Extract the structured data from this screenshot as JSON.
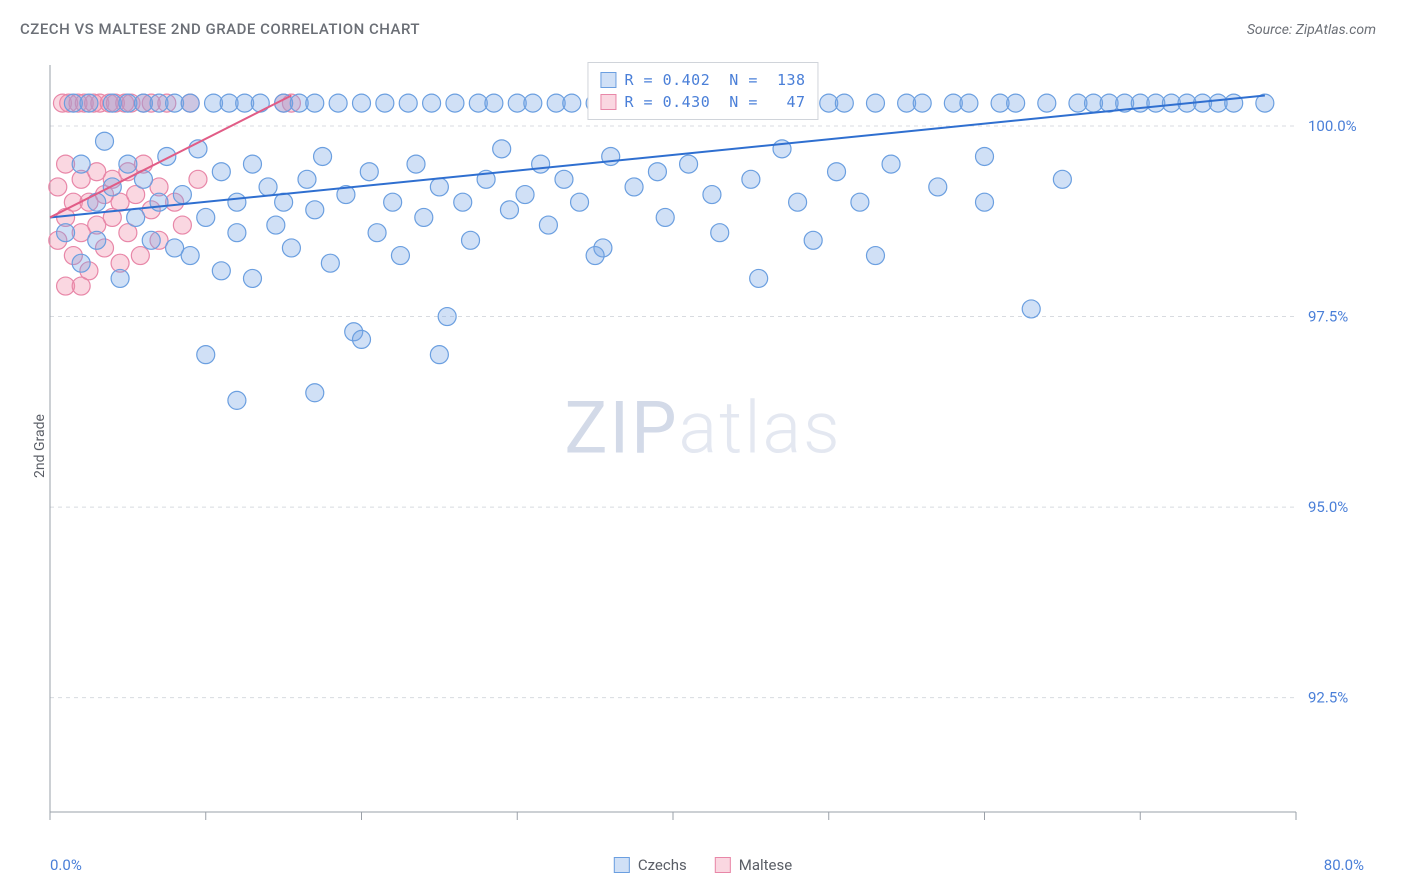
{
  "title": "CZECH VS MALTESE 2ND GRADE CORRELATION CHART",
  "source": "Source: ZipAtlas.com",
  "y_axis_label": "2nd Grade",
  "watermark_zip": "ZIP",
  "watermark_atlas": "atlas",
  "chart": {
    "type": "scatter",
    "xlim": [
      0,
      80
    ],
    "ylim": [
      91.0,
      100.8
    ],
    "x_ticks": [
      0,
      10,
      20,
      30,
      40,
      50,
      60,
      70,
      80
    ],
    "y_ticks": [
      92.5,
      95.0,
      97.5,
      100.0
    ],
    "y_tick_labels": [
      "92.5%",
      "95.0%",
      "97.5%",
      "100.0%"
    ],
    "x_min_label": "0.0%",
    "x_max_label": "80.0%",
    "grid_color": "#d8dbe0",
    "axis_color": "#9aa0a8",
    "tick_label_color": "#4a7fd8",
    "background_color": "#ffffff",
    "marker_radius": 9,
    "marker_stroke_width": 1.2,
    "line_width": 2,
    "series": [
      {
        "name": "Czechs",
        "fill": "rgba(120,165,230,0.35)",
        "stroke": "#6b9fe0",
        "regression": {
          "x1": 0,
          "y1": 98.8,
          "x2": 78,
          "y2": 100.4,
          "color": "#2f6fd0"
        },
        "points": [
          [
            1,
            98.6
          ],
          [
            1.5,
            100.3
          ],
          [
            2,
            99.5
          ],
          [
            2,
            98.2
          ],
          [
            2.5,
            100.3
          ],
          [
            3,
            99.0
          ],
          [
            3,
            98.5
          ],
          [
            3.5,
            99.8
          ],
          [
            4,
            100.3
          ],
          [
            4,
            99.2
          ],
          [
            4.5,
            98.0
          ],
          [
            5,
            99.5
          ],
          [
            5,
            100.3
          ],
          [
            5.5,
            98.8
          ],
          [
            6,
            99.3
          ],
          [
            6,
            100.3
          ],
          [
            6.5,
            98.5
          ],
          [
            7,
            99.0
          ],
          [
            7,
            100.3
          ],
          [
            7.5,
            99.6
          ],
          [
            8,
            98.4
          ],
          [
            8,
            100.3
          ],
          [
            8.5,
            99.1
          ],
          [
            9,
            98.3
          ],
          [
            9,
            100.3
          ],
          [
            9.5,
            99.7
          ],
          [
            10,
            98.8
          ],
          [
            10,
            97.0
          ],
          [
            10.5,
            100.3
          ],
          [
            11,
            99.4
          ],
          [
            11,
            98.1
          ],
          [
            11.5,
            100.3
          ],
          [
            12,
            99.0
          ],
          [
            12,
            98.6
          ],
          [
            12.5,
            100.3
          ],
          [
            13,
            99.5
          ],
          [
            13,
            98.0
          ],
          [
            13.5,
            100.3
          ],
          [
            14,
            99.2
          ],
          [
            14.5,
            98.7
          ],
          [
            15,
            100.3
          ],
          [
            15,
            99.0
          ],
          [
            15.5,
            98.4
          ],
          [
            16,
            100.3
          ],
          [
            16.5,
            99.3
          ],
          [
            17,
            98.9
          ],
          [
            17,
            100.3
          ],
          [
            17.5,
            99.6
          ],
          [
            18,
            98.2
          ],
          [
            18.5,
            100.3
          ],
          [
            19,
            99.1
          ],
          [
            19.5,
            97.3
          ],
          [
            20,
            100.3
          ],
          [
            20.5,
            99.4
          ],
          [
            21,
            98.6
          ],
          [
            21.5,
            100.3
          ],
          [
            22,
            99.0
          ],
          [
            22.5,
            98.3
          ],
          [
            23,
            100.3
          ],
          [
            23.5,
            99.5
          ],
          [
            24,
            98.8
          ],
          [
            24.5,
            100.3
          ],
          [
            25,
            99.2
          ],
          [
            25.5,
            97.5
          ],
          [
            26,
            100.3
          ],
          [
            26.5,
            99.0
          ],
          [
            27,
            98.5
          ],
          [
            27.5,
            100.3
          ],
          [
            28,
            99.3
          ],
          [
            28.5,
            100.3
          ],
          [
            29,
            99.7
          ],
          [
            29.5,
            98.9
          ],
          [
            30,
            100.3
          ],
          [
            30.5,
            99.1
          ],
          [
            31,
            100.3
          ],
          [
            31.5,
            99.5
          ],
          [
            32,
            98.7
          ],
          [
            32.5,
            100.3
          ],
          [
            33,
            99.3
          ],
          [
            33.5,
            100.3
          ],
          [
            34,
            99.0
          ],
          [
            35,
            100.3
          ],
          [
            35.5,
            98.4
          ],
          [
            36,
            99.6
          ],
          [
            37,
            100.3
          ],
          [
            37.5,
            99.2
          ],
          [
            38,
            100.3
          ],
          [
            39,
            99.4
          ],
          [
            39.5,
            98.8
          ],
          [
            40,
            100.3
          ],
          [
            41,
            99.5
          ],
          [
            42,
            100.3
          ],
          [
            42.5,
            99.1
          ],
          [
            43,
            98.6
          ],
          [
            44,
            100.3
          ],
          [
            45,
            99.3
          ],
          [
            45.5,
            98.0
          ],
          [
            46,
            100.3
          ],
          [
            47,
            99.7
          ],
          [
            48,
            100.3
          ],
          [
            49,
            98.5
          ],
          [
            50,
            100.3
          ],
          [
            50.5,
            99.4
          ],
          [
            51,
            100.3
          ],
          [
            52,
            99.0
          ],
          [
            53,
            100.3
          ],
          [
            54,
            99.5
          ],
          [
            55,
            100.3
          ],
          [
            56,
            100.3
          ],
          [
            57,
            99.2
          ],
          [
            58,
            100.3
          ],
          [
            59,
            100.3
          ],
          [
            60,
            99.6
          ],
          [
            61,
            100.3
          ],
          [
            62,
            100.3
          ],
          [
            63,
            97.6
          ],
          [
            64,
            100.3
          ],
          [
            65,
            99.3
          ],
          [
            66,
            100.3
          ],
          [
            67,
            100.3
          ],
          [
            68,
            100.3
          ],
          [
            69,
            100.3
          ],
          [
            70,
            100.3
          ],
          [
            71,
            100.3
          ],
          [
            72,
            100.3
          ],
          [
            73,
            100.3
          ],
          [
            74,
            100.3
          ],
          [
            75,
            100.3
          ],
          [
            76,
            100.3
          ],
          [
            78,
            100.3
          ],
          [
            12,
            96.4
          ],
          [
            17,
            96.5
          ],
          [
            20,
            97.2
          ],
          [
            25,
            97.0
          ],
          [
            35,
            98.3
          ],
          [
            48,
            99.0
          ],
          [
            53,
            98.3
          ],
          [
            60,
            99.0
          ]
        ]
      },
      {
        "name": "Maltese",
        "fill": "rgba(240,140,170,0.35)",
        "stroke": "#e887a8",
        "regression": {
          "x1": 0,
          "y1": 98.8,
          "x2": 15.5,
          "y2": 100.4,
          "color": "#e15c86"
        },
        "points": [
          [
            0.5,
            98.5
          ],
          [
            0.5,
            99.2
          ],
          [
            0.8,
            100.3
          ],
          [
            1,
            98.8
          ],
          [
            1,
            99.5
          ],
          [
            1.2,
            100.3
          ],
          [
            1.5,
            98.3
          ],
          [
            1.5,
            99.0
          ],
          [
            1.8,
            100.3
          ],
          [
            2,
            99.3
          ],
          [
            2,
            98.6
          ],
          [
            2.2,
            100.3
          ],
          [
            2.5,
            99.0
          ],
          [
            2.5,
            98.1
          ],
          [
            2.8,
            100.3
          ],
          [
            3,
            99.4
          ],
          [
            3,
            98.7
          ],
          [
            3.2,
            100.3
          ],
          [
            3.5,
            99.1
          ],
          [
            3.5,
            98.4
          ],
          [
            3.8,
            100.3
          ],
          [
            4,
            99.3
          ],
          [
            4,
            98.8
          ],
          [
            4.2,
            100.3
          ],
          [
            4.5,
            99.0
          ],
          [
            4.5,
            98.2
          ],
          [
            4.8,
            100.3
          ],
          [
            5,
            99.4
          ],
          [
            5,
            98.6
          ],
          [
            5.2,
            100.3
          ],
          [
            5.5,
            99.1
          ],
          [
            5.8,
            98.3
          ],
          [
            6,
            100.3
          ],
          [
            6,
            99.5
          ],
          [
            6.5,
            98.9
          ],
          [
            6.5,
            100.3
          ],
          [
            7,
            99.2
          ],
          [
            7,
            98.5
          ],
          [
            7.5,
            100.3
          ],
          [
            8,
            99.0
          ],
          [
            8.5,
            98.7
          ],
          [
            9,
            100.3
          ],
          [
            9.5,
            99.3
          ],
          [
            15,
            100.3
          ],
          [
            15.5,
            100.3
          ],
          [
            1,
            97.9
          ],
          [
            2,
            97.9
          ]
        ]
      }
    ]
  },
  "legend_top": [
    {
      "swatch_fill": "rgba(120,165,230,0.35)",
      "swatch_stroke": "#6b9fe0",
      "r": "0.402",
      "n": "138"
    },
    {
      "swatch_fill": "rgba(240,140,170,0.35)",
      "swatch_stroke": "#e887a8",
      "r": "0.430",
      "n": "47"
    }
  ],
  "legend_bottom": [
    {
      "swatch_fill": "rgba(120,165,230,0.35)",
      "swatch_stroke": "#6b9fe0",
      "label": "Czechs"
    },
    {
      "swatch_fill": "rgba(240,140,170,0.35)",
      "swatch_stroke": "#e887a8",
      "label": "Maltese"
    }
  ]
}
